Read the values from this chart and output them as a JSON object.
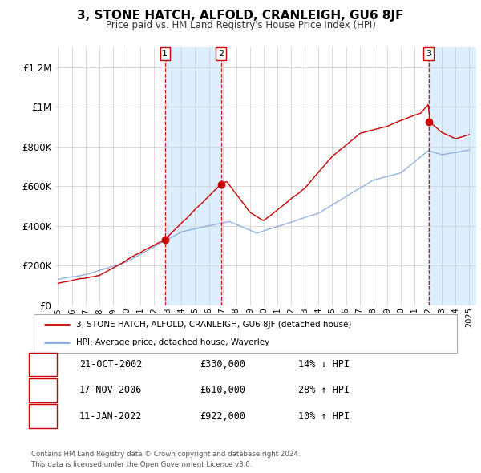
{
  "title": "3, STONE HATCH, ALFOLD, CRANLEIGH, GU6 8JF",
  "subtitle": "Price paid vs. HM Land Registry's House Price Index (HPI)",
  "legend_property": "3, STONE HATCH, ALFOLD, CRANLEIGH, GU6 8JF (detached house)",
  "legend_hpi": "HPI: Average price, detached house, Waverley",
  "footer1": "Contains HM Land Registry data © Crown copyright and database right 2024.",
  "footer2": "This data is licensed under the Open Government Licence v3.0.",
  "transactions": [
    {
      "num": 1,
      "date": "21-OCT-2002",
      "price": "£330,000",
      "pct": "14%",
      "dir": "↓",
      "x_year": 2002.8,
      "y_price": 330000
    },
    {
      "num": 2,
      "date": "17-NOV-2006",
      "price": "£610,000",
      "pct": "28%",
      "dir": "↑",
      "x_year": 2006.88,
      "y_price": 610000
    },
    {
      "num": 3,
      "date": "11-JAN-2022",
      "price": "£922,000",
      "pct": "10%",
      "dir": "↑",
      "x_year": 2022.03,
      "y_price": 922000
    }
  ],
  "property_color": "#cc0000",
  "hpi_color": "#88aadd",
  "shade_color": "#ddeeff",
  "vline_color": "#cc0000",
  "background_color": "#ffffff",
  "ylim": [
    0,
    1300000
  ],
  "xlim_start": 1994.8,
  "xlim_end": 2025.5,
  "yticks": [
    0,
    200000,
    400000,
    600000,
    800000,
    1000000,
    1200000
  ],
  "ytick_labels": [
    "£0",
    "£200K",
    "£400K",
    "£600K",
    "£800K",
    "£1M",
    "£1.2M"
  ],
  "xticks": [
    1995,
    1996,
    1997,
    1998,
    1999,
    2000,
    2001,
    2002,
    2003,
    2004,
    2005,
    2006,
    2007,
    2008,
    2009,
    2010,
    2011,
    2012,
    2013,
    2014,
    2015,
    2016,
    2017,
    2018,
    2019,
    2020,
    2021,
    2022,
    2023,
    2024,
    2025
  ]
}
